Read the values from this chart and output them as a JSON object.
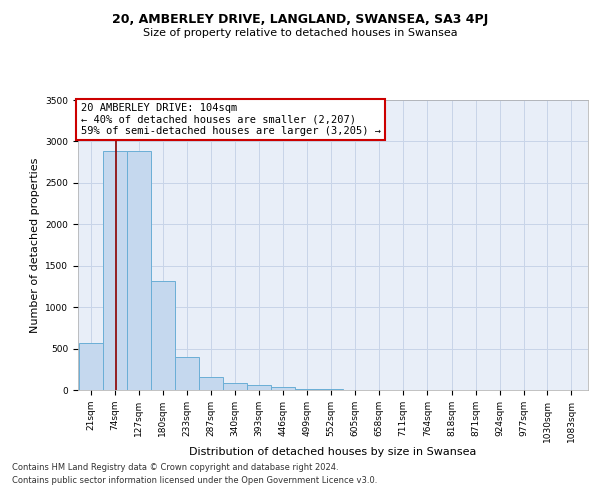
{
  "title1": "20, AMBERLEY DRIVE, LANGLAND, SWANSEA, SA3 4PJ",
  "title2": "Size of property relative to detached houses in Swansea",
  "xlabel": "Distribution of detached houses by size in Swansea",
  "ylabel": "Number of detached properties",
  "footer1": "Contains HM Land Registry data © Crown copyright and database right 2024.",
  "footer2": "Contains public sector information licensed under the Open Government Licence v3.0.",
  "annotation_line1": "20 AMBERLEY DRIVE: 104sqm",
  "annotation_line2": "← 40% of detached houses are smaller (2,207)",
  "annotation_line3": "59% of semi-detached houses are larger (3,205) →",
  "property_size": 104,
  "categories": [
    "21sqm",
    "74sqm",
    "127sqm",
    "180sqm",
    "233sqm",
    "287sqm",
    "340sqm",
    "393sqm",
    "446sqm",
    "499sqm",
    "552sqm",
    "605sqm",
    "658sqm",
    "711sqm",
    "764sqm",
    "818sqm",
    "871sqm",
    "924sqm",
    "977sqm",
    "1030sqm",
    "1083sqm"
  ],
  "bin_edges": [
    21,
    74,
    127,
    180,
    233,
    287,
    340,
    393,
    446,
    499,
    552,
    605,
    658,
    711,
    764,
    818,
    871,
    924,
    977,
    1030,
    1083,
    1136
  ],
  "values": [
    570,
    2880,
    2880,
    1310,
    400,
    155,
    90,
    60,
    35,
    15,
    8,
    4,
    3,
    2,
    2,
    1,
    1,
    1,
    1,
    1,
    1
  ],
  "bar_color": "#c5d8ee",
  "bar_edge_color": "#6aaed6",
  "vline_color": "#8b0000",
  "vline_x": 104,
  "box_color": "#cc0000",
  "bg_color": "#e8eef8",
  "grid_color": "#c8d4e8",
  "ylim": [
    0,
    3500
  ],
  "title1_fontsize": 9,
  "title2_fontsize": 8,
  "xlabel_fontsize": 8,
  "ylabel_fontsize": 8,
  "tick_fontsize": 6.5,
  "annotation_fontsize": 7.5,
  "footer_fontsize": 6
}
